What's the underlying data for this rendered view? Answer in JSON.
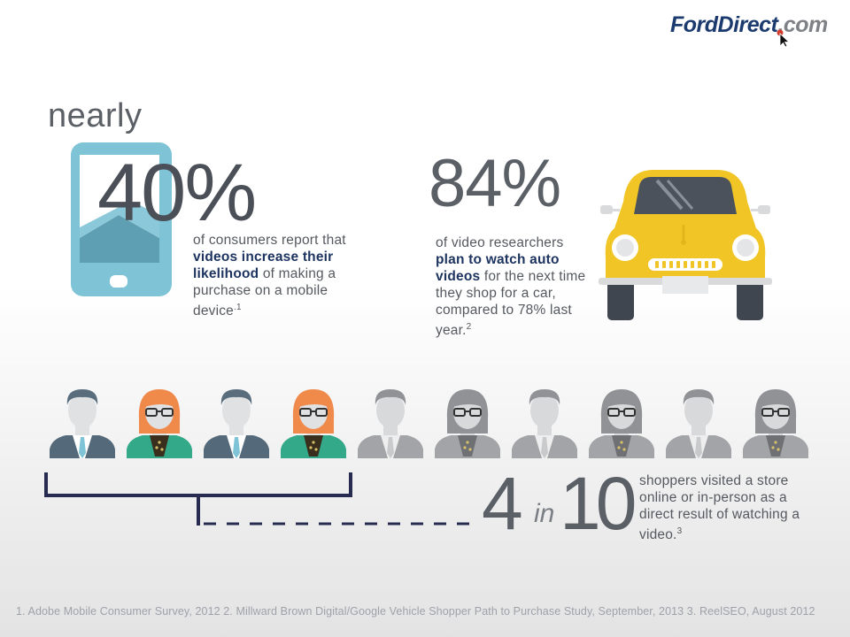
{
  "logo": {
    "ford": "Ford",
    "direct": "Direct",
    "com": ".com"
  },
  "stat_40": {
    "prefix": "nearly",
    "value": "40%",
    "desc_a": "of consumers report that ",
    "desc_bold": "videos increase their likelihood",
    "desc_b": " of making a purchase on a mobile device",
    "footnote_ref": ".1"
  },
  "stat_84": {
    "value": "84%",
    "desc_a": "of video researchers ",
    "desc_bold": "plan to watch auto videos",
    "desc_b": " for the next time they shop for a car, compared to 78% last year.",
    "footnote_ref": "2"
  },
  "stat_4in10": {
    "num": "4",
    "in": "in",
    "den": "10",
    "desc": "shoppers visited a store online or in-person as a direct result of watching a video.",
    "footnote_ref": "3",
    "highlighted_people": 4,
    "total_people": 10
  },
  "footnotes": "1. Adobe Mobile Consumer Survey, 2012   2. Millward Brown Digital/Google Vehicle Shopper Path to Purchase Study, September, 2013   3. ReelSEO, August 2012",
  "colors": {
    "navy": "#1e3460",
    "tablet": "#7ec3d6",
    "car": "#f2c526",
    "man_suit": "#546a7b",
    "woman_hair": "#f08a4b",
    "teal": "#34a98a",
    "gray": "#a2a4a7"
  },
  "icons": [
    "tablet-icon",
    "car-icon",
    "person-icon"
  ]
}
